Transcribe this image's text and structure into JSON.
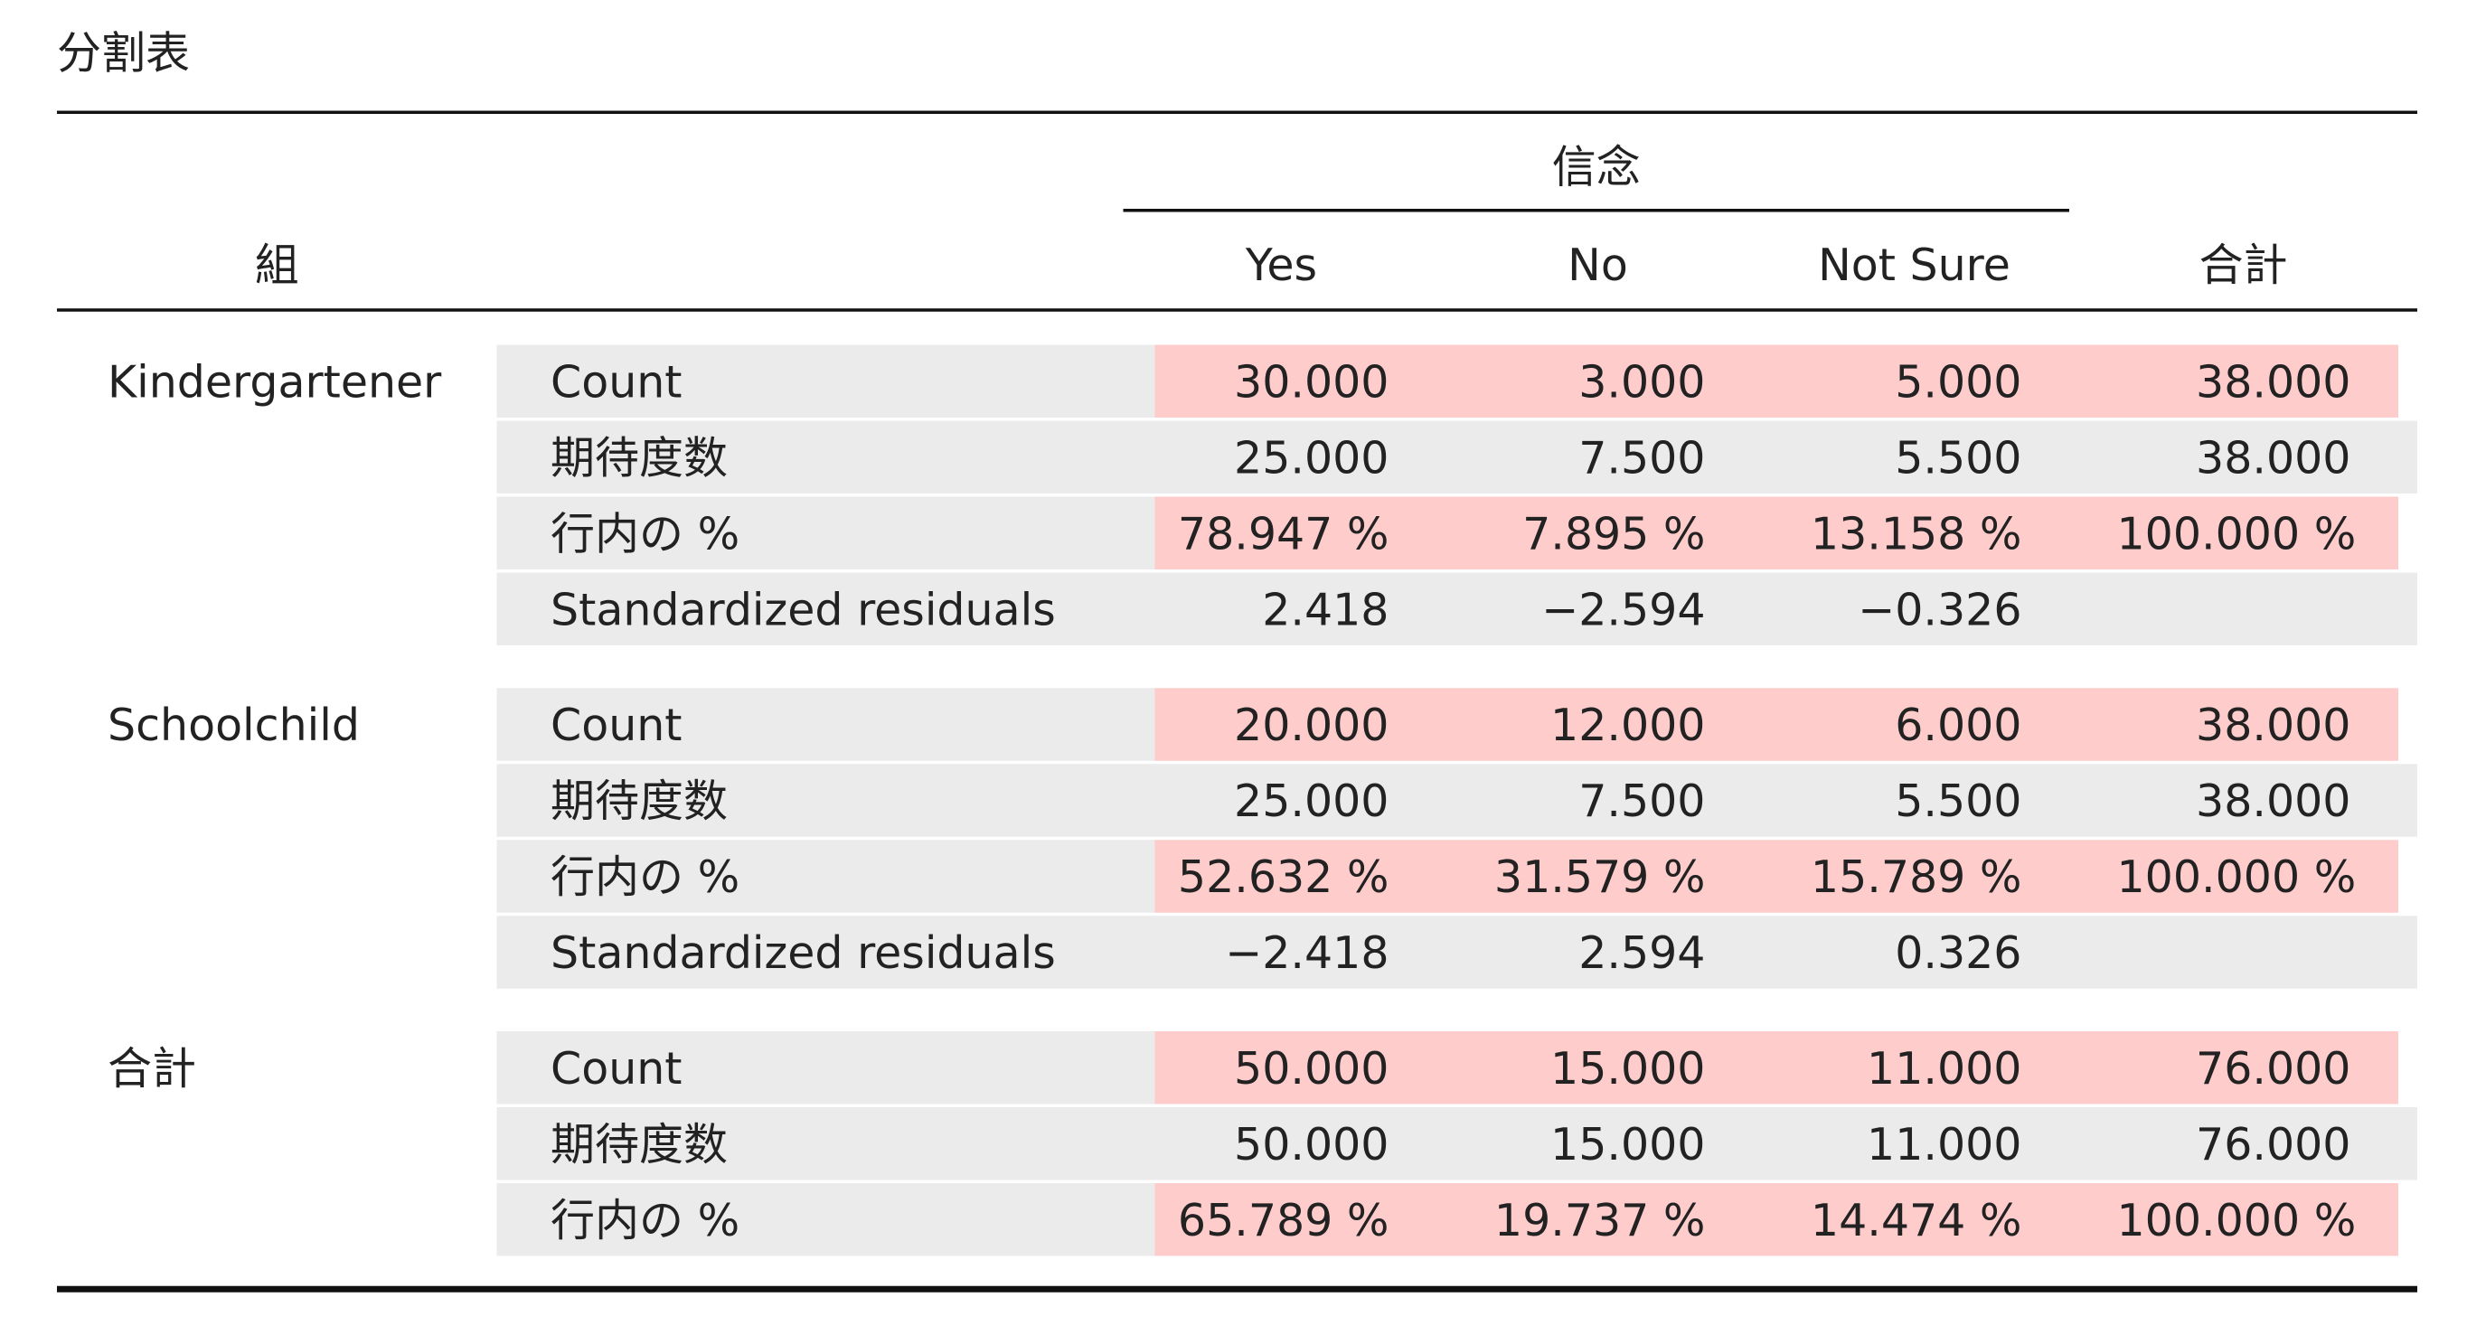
{
  "title": "分割表",
  "header": {
    "group_label": "組",
    "spanner_label": "信念",
    "columns": [
      "Yes",
      "No",
      "Not Sure"
    ],
    "total_label": "合計"
  },
  "groups": [
    {
      "name": "Kindergartener",
      "rows": [
        {
          "label": "Count",
          "values": [
            "30.000",
            "3.000",
            "5.000",
            "38.000"
          ]
        },
        {
          "label": "期待度数",
          "values": [
            "25.000",
            "7.500",
            "5.500",
            "38.000"
          ]
        },
        {
          "label": "行内の %",
          "values": [
            "78.947 %",
            "7.895 %",
            "13.158 %",
            "100.000 %"
          ]
        },
        {
          "label": "Standardized residuals",
          "values": [
            "2.418",
            "−2.594",
            "−0.326",
            ""
          ]
        }
      ]
    },
    {
      "name": "Schoolchild",
      "rows": [
        {
          "label": "Count",
          "values": [
            "20.000",
            "12.000",
            "6.000",
            "38.000"
          ]
        },
        {
          "label": "期待度数",
          "values": [
            "25.000",
            "7.500",
            "5.500",
            "38.000"
          ]
        },
        {
          "label": "行内の %",
          "values": [
            "52.632 %",
            "31.579 %",
            "15.789 %",
            "100.000 %"
          ]
        },
        {
          "label": "Standardized residuals",
          "values": [
            "−2.418",
            "2.594",
            "0.326",
            ""
          ]
        }
      ]
    },
    {
      "name": "合計",
      "rows": [
        {
          "label": "Count",
          "values": [
            "50.000",
            "15.000",
            "11.000",
            "76.000"
          ]
        },
        {
          "label": "期待度数",
          "values": [
            "50.000",
            "15.000",
            "11.000",
            "76.000"
          ]
        },
        {
          "label": "行内の %",
          "values": [
            "65.789 %",
            "19.737 %",
            "14.474 %",
            "100.000 %"
          ]
        }
      ]
    }
  ],
  "colors": {
    "highlight_fill": "#ffcccc",
    "stripe_fill": "#ebebeb",
    "rule": "#111111",
    "text": "#222222"
  }
}
